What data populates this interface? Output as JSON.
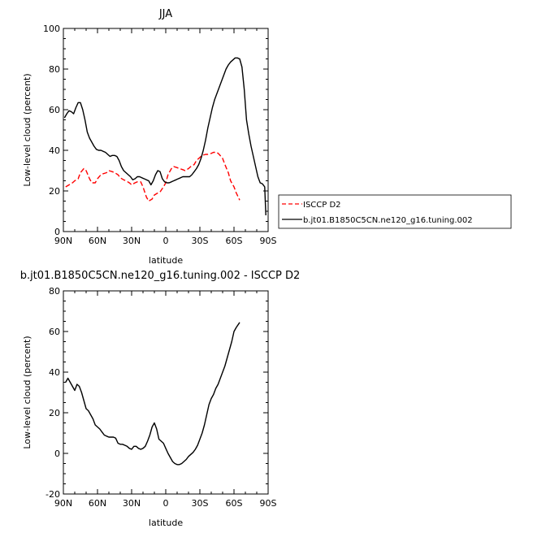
{
  "chart_data": [
    {
      "type": "line",
      "title": "JJA",
      "xlabel": "latitude",
      "ylabel": "Low-level cloud (percent)",
      "xlim": [
        90,
        -90
      ],
      "ylim": [
        0,
        100
      ],
      "xticks": [
        {
          "value": 90,
          "label": "90N"
        },
        {
          "value": 60,
          "label": "60N"
        },
        {
          "value": 30,
          "label": "30N"
        },
        {
          "value": 0,
          "label": "0"
        },
        {
          "value": -30,
          "label": "30S"
        },
        {
          "value": -60,
          "label": "60S"
        },
        {
          "value": -90,
          "label": "90S"
        }
      ],
      "yticks": [
        {
          "value": 0,
          "label": "0"
        },
        {
          "value": 20,
          "label": "20"
        },
        {
          "value": 40,
          "label": "40"
        },
        {
          "value": 60,
          "label": "60"
        },
        {
          "value": 80,
          "label": "80"
        },
        {
          "value": 100,
          "label": "100"
        }
      ],
      "legend": "right",
      "series": [
        {
          "name": "ISCCP D2",
          "color": "#ff0000",
          "dash": "dashed",
          "x": [
            88,
            85,
            82,
            80,
            77,
            75,
            72,
            70,
            67,
            65,
            62,
            60,
            57,
            55,
            52,
            50,
            47,
            45,
            42,
            40,
            37,
            35,
            32,
            30,
            27,
            25,
            22,
            20,
            17,
            15,
            12,
            10,
            7,
            5,
            2,
            0,
            -2,
            -5,
            -7,
            -10,
            -12,
            -15,
            -17,
            -20,
            -22,
            -25,
            -27,
            -30,
            -32,
            -35,
            -37,
            -40,
            -42,
            -45,
            -47,
            -50,
            -52,
            -55,
            -57,
            -60,
            -62,
            -65
          ],
          "y": [
            22,
            23,
            24,
            25,
            26,
            29,
            31,
            30,
            26,
            24,
            24,
            26,
            28,
            28.5,
            29,
            30,
            29.5,
            29,
            28,
            26.5,
            25.5,
            25,
            24,
            23,
            24,
            24.5,
            24.5,
            22,
            17,
            15,
            16,
            18,
            19,
            19.5,
            22,
            24,
            28,
            31,
            32,
            31.5,
            31,
            30.5,
            30,
            31,
            32,
            33,
            35,
            36.5,
            37.5,
            38,
            38,
            38.5,
            39,
            39,
            38,
            36,
            33,
            29,
            25,
            22,
            19,
            15.5
          ]
        },
        {
          "name": "b.jt01.B1850C5CN.ne120_g16.tuning.002",
          "color": "#000000",
          "dash": "solid",
          "x": [
            89,
            87,
            85,
            83,
            81,
            79,
            77,
            75,
            73,
            71,
            69,
            67,
            65,
            63,
            61,
            59,
            57,
            55,
            53,
            51,
            49,
            47,
            45,
            43,
            41,
            39,
            37,
            35,
            33,
            31,
            29,
            27,
            25,
            23,
            21,
            19,
            17,
            15,
            13,
            11,
            9,
            7,
            5,
            3,
            1,
            -1,
            -3,
            -5,
            -7,
            -9,
            -11,
            -13,
            -15,
            -17,
            -19,
            -21,
            -23,
            -25,
            -27,
            -29,
            -31,
            -33,
            -35,
            -37,
            -39,
            -41,
            -43,
            -45,
            -47,
            -49,
            -51,
            -53,
            -55,
            -57,
            -59,
            -61,
            -63,
            -65,
            -67,
            -69,
            -71,
            -73,
            -75,
            -77,
            -79,
            -81,
            -83,
            -85,
            -87,
            -88
          ],
          "y": [
            56,
            58,
            59.5,
            59,
            58,
            61,
            63.5,
            63.5,
            60,
            55,
            49,
            46,
            44,
            42,
            40.5,
            40,
            40,
            39.5,
            39,
            38,
            37,
            37.5,
            37.5,
            37,
            35,
            32,
            30,
            29,
            28,
            27,
            25.5,
            26,
            27,
            27,
            26.5,
            26,
            25.5,
            25,
            23,
            25,
            28,
            30,
            29.5,
            26,
            24.5,
            24,
            24,
            24.5,
            25,
            25.5,
            26,
            26.5,
            27,
            27,
            27,
            27,
            28,
            29.5,
            31,
            33,
            36,
            40,
            45,
            51,
            56,
            61,
            65,
            68,
            71,
            74,
            77,
            80,
            82,
            83.5,
            84.5,
            85.5,
            85.5,
            85,
            81,
            70,
            55,
            48,
            42,
            37,
            32,
            27,
            24,
            23.5,
            22,
            8
          ]
        }
      ]
    },
    {
      "type": "line",
      "title": "b.jt01.B1850C5CN.ne120_g16.tuning.002 - ISCCP D2",
      "xlabel": "latitude",
      "ylabel": "Low-level cloud (percent)",
      "xlim": [
        90,
        -90
      ],
      "ylim": [
        -20,
        80
      ],
      "xticks": [
        {
          "value": 90,
          "label": "90N"
        },
        {
          "value": 60,
          "label": "60N"
        },
        {
          "value": 30,
          "label": "30N"
        },
        {
          "value": 0,
          "label": "0"
        },
        {
          "value": -30,
          "label": "30S"
        },
        {
          "value": -60,
          "label": "60S"
        },
        {
          "value": -90,
          "label": "90S"
        }
      ],
      "yticks": [
        {
          "value": -20,
          "label": "-20"
        },
        {
          "value": 0,
          "label": "0"
        },
        {
          "value": 20,
          "label": "20"
        },
        {
          "value": 40,
          "label": "40"
        },
        {
          "value": 60,
          "label": "60"
        },
        {
          "value": 80,
          "label": "80"
        }
      ],
      "series": [
        {
          "color": "#000000",
          "dash": "solid",
          "x": [
            88,
            86,
            84,
            82,
            80,
            78,
            76,
            74,
            72,
            70,
            68,
            66,
            64,
            62,
            60,
            58,
            56,
            54,
            52,
            50,
            48,
            46,
            44,
            42,
            40,
            38,
            36,
            34,
            32,
            30,
            28,
            26,
            24,
            22,
            20,
            18,
            16,
            14,
            12,
            10,
            8,
            6,
            4,
            2,
            0,
            -2,
            -4,
            -6,
            -8,
            -10,
            -12,
            -14,
            -16,
            -18,
            -20,
            -22,
            -24,
            -26,
            -28,
            -30,
            -32,
            -34,
            -36,
            -38,
            -40,
            -42,
            -44,
            -46,
            -48,
            -50,
            -52,
            -54,
            -56,
            -58,
            -60,
            -62,
            -65
          ],
          "y": [
            35,
            37,
            35,
            33,
            31,
            34,
            33,
            30,
            26,
            22,
            21,
            19,
            17,
            14,
            13,
            12,
            10.5,
            9,
            8.5,
            8,
            8,
            8,
            7.5,
            5,
            4.5,
            4.5,
            4,
            3.5,
            2.5,
            2,
            3.5,
            3.5,
            2.5,
            2,
            2.5,
            3.5,
            6,
            9,
            13,
            15,
            12,
            7,
            6,
            5,
            2.5,
            0,
            -2,
            -4,
            -5,
            -5.5,
            -5.5,
            -5,
            -4,
            -3,
            -1.5,
            -0.5,
            0.5,
            2,
            4,
            7,
            10,
            14,
            19,
            24,
            27,
            29,
            32,
            34,
            37,
            40,
            43,
            47,
            51,
            55,
            60,
            62,
            64.5
          ]
        }
      ]
    }
  ]
}
